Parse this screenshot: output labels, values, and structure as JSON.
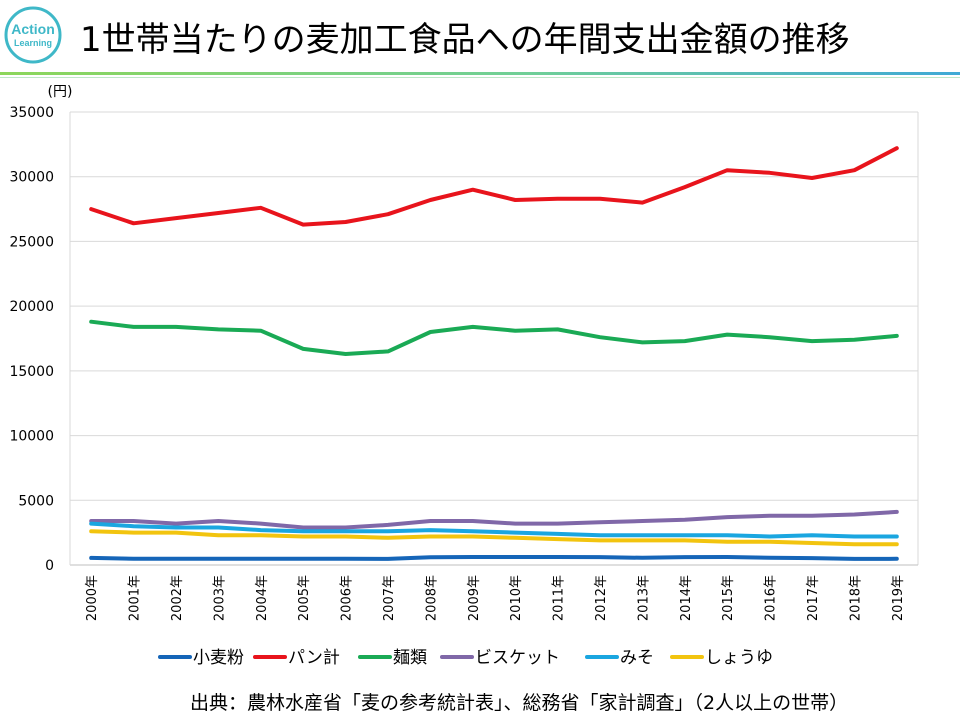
{
  "header": {
    "title": "1世帯当たりの麦加工食品への年間支出金額の推移",
    "logo_line1": "Action",
    "logo_line2": "Learning"
  },
  "colors": {
    "logo": "#3fb8c8",
    "bar_green": "#8cd65a",
    "bar_blue": "#3fa9d6",
    "grid": "#d9d9d9"
  },
  "chart_data": {
    "type": "line",
    "title": "1世帯当たりの麦加工食品への年間支出金額の推移",
    "unit_label": "(円)",
    "xlabel": "",
    "ylabel": "(円)",
    "ylim": [
      0,
      35000
    ],
    "yticks": [
      0,
      5000,
      10000,
      15000,
      20000,
      25000,
      30000,
      35000
    ],
    "grid": true,
    "legend_position": "bottom",
    "categories": [
      "2000年",
      "2001年",
      "2002年",
      "2003年",
      "2004年",
      "2005年",
      "2006年",
      "2007年",
      "2008年",
      "2009年",
      "2010年",
      "2011年",
      "2012年",
      "2013年",
      "2014年",
      "2015年",
      "2016年",
      "2017年",
      "2018年",
      "2019年"
    ],
    "series": [
      {
        "name": "小麦粉",
        "color": "#1565b8",
        "values": [
          550,
          480,
          480,
          480,
          490,
          480,
          480,
          470,
          600,
          620,
          620,
          620,
          610,
          560,
          610,
          620,
          560,
          530,
          470,
          480
        ]
      },
      {
        "name": "パン計",
        "color": "#e8141c",
        "values": [
          27500,
          26400,
          26800,
          27200,
          27600,
          26300,
          26500,
          27100,
          28200,
          29000,
          28200,
          28300,
          28300,
          28000,
          29200,
          30500,
          30300,
          29900,
          30500,
          32200
        ]
      },
      {
        "name": "麺類",
        "color": "#1aaa55",
        "values": [
          18800,
          18400,
          18400,
          18200,
          18100,
          16700,
          16300,
          16500,
          18000,
          18400,
          18100,
          18200,
          17600,
          17200,
          17300,
          17800,
          17600,
          17300,
          17400,
          17700
        ]
      },
      {
        "name": "ビスケット",
        "color": "#8068a8",
        "values": [
          3400,
          3400,
          3200,
          3400,
          3200,
          2900,
          2900,
          3100,
          3400,
          3400,
          3200,
          3200,
          3300,
          3400,
          3500,
          3700,
          3800,
          3800,
          3900,
          4100
        ]
      },
      {
        "name": "みそ",
        "color": "#1aa6e0",
        "values": [
          3200,
          3000,
          2900,
          2900,
          2700,
          2600,
          2600,
          2600,
          2700,
          2600,
          2500,
          2400,
          2300,
          2300,
          2300,
          2300,
          2200,
          2300,
          2200,
          2200
        ]
      },
      {
        "name": "しょうゆ",
        "color": "#f2c40f",
        "values": [
          2600,
          2500,
          2500,
          2300,
          2300,
          2200,
          2200,
          2100,
          2200,
          2200,
          2100,
          2000,
          1900,
          1900,
          1900,
          1800,
          1800,
          1700,
          1600,
          1600
        ]
      }
    ]
  },
  "footer": {
    "source": "出典：農林水産省「麦の参考統計表」、総務省「家計調査」（2人以上の世帯）"
  }
}
